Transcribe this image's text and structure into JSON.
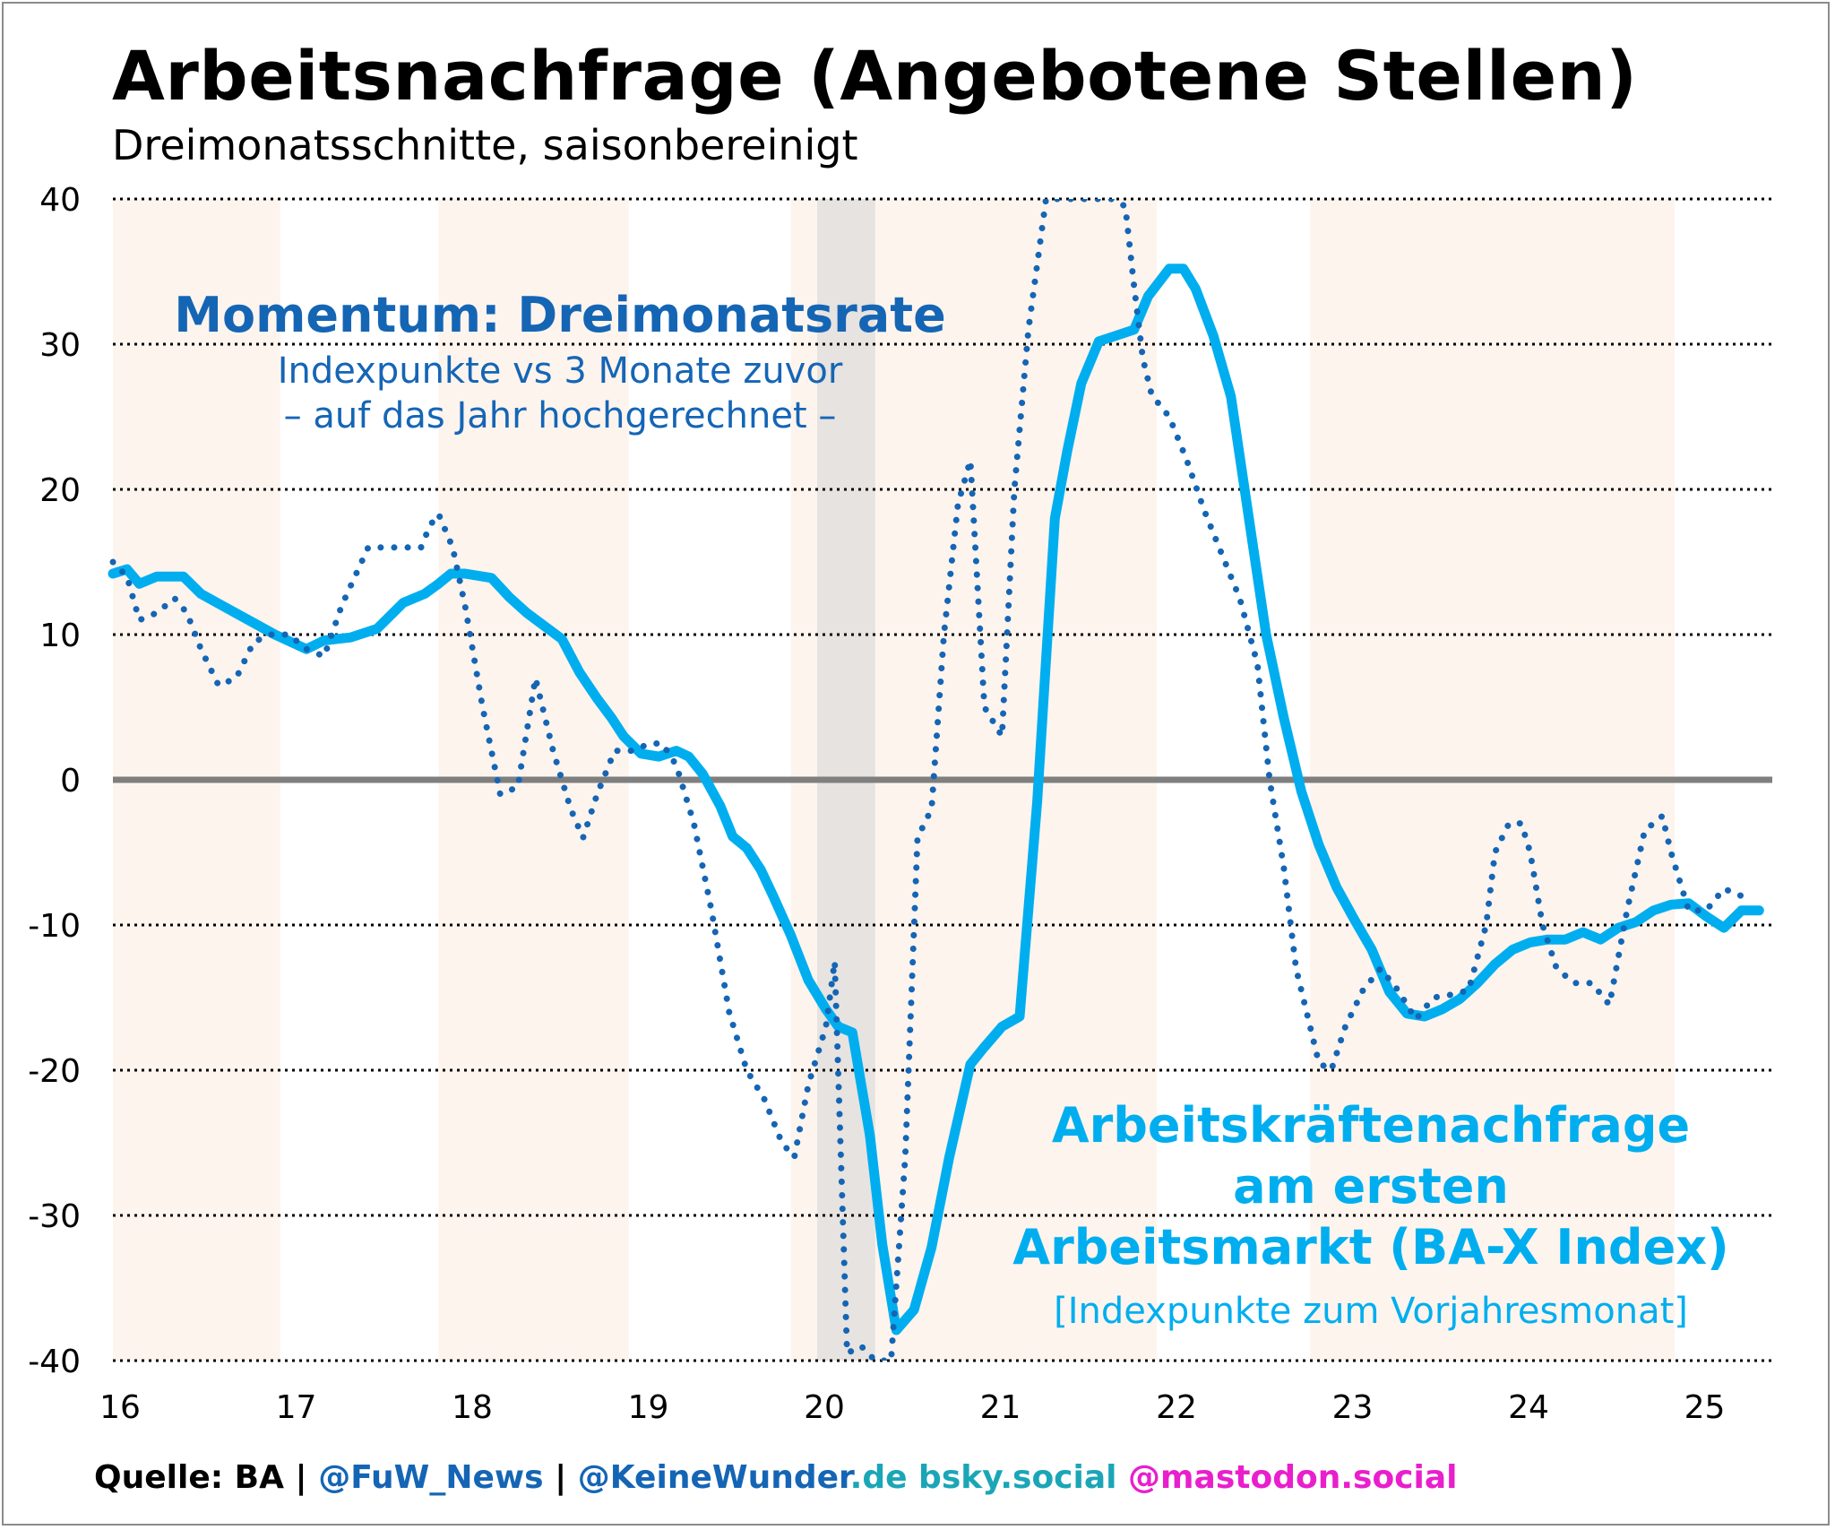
{
  "title": "Arbeitsnachfrage (Angebotene Stellen)",
  "subtitle": "Dreimonatsschnitte, saisonbereinigt",
  "annotations": {
    "momentum_title": "Momentum: Dreimonatsrate",
    "momentum_line1": "Indexpunkte vs 3 Monate zuvor",
    "momentum_line2": "– auf das Jahr hochgerechnet –",
    "bax_line1": "Arbeitskräftenachfrage",
    "bax_line2": "am ersten",
    "bax_line3": "Arbeitsmarkt (BA-X Index)",
    "bax_unit": "[Indexpunkte zum Vorjahresmonat]"
  },
  "footer": {
    "source": "Quelle: BA",
    "sep": " | ",
    "fuw": "@FuW_News",
    "kw_name": "@KeineWunder",
    "kw_domain": ".de",
    "bsky": " bsky.social",
    "mastodon": " @mastodon.social"
  },
  "colors": {
    "solid_line": "#00aeef",
    "dotted_line": "#1565b5",
    "momentum_text": "#1565b5",
    "bax_text": "#00aeef",
    "zero_line": "#7f7f7f",
    "highlight_band": "#fdf4ee",
    "covid_band": "#e6e3e0",
    "bsky": "#1aa6b7",
    "mastodon": "#e91ecd"
  },
  "chart_data": {
    "type": "line",
    "ylim": [
      -40,
      40
    ],
    "xlim": [
      2016,
      2025.4
    ],
    "yticks": [
      40,
      30,
      20,
      10,
      0,
      -10,
      -20,
      -30,
      -40
    ],
    "xticks": [
      {
        "x": 2016,
        "label": "16"
      },
      {
        "x": 2017,
        "label": "17"
      },
      {
        "x": 2018,
        "label": "18"
      },
      {
        "x": 2019,
        "label": "19"
      },
      {
        "x": 2020,
        "label": "20"
      },
      {
        "x": 2021,
        "label": "21"
      },
      {
        "x": 2022,
        "label": "22"
      },
      {
        "x": 2023,
        "label": "23"
      },
      {
        "x": 2024,
        "label": "24"
      },
      {
        "x": 2025,
        "label": "25"
      }
    ],
    "grid": "horizontal-dotted",
    "shaded_periods": [
      [
        2016,
        2016.95
      ],
      [
        2017.85,
        2018.93
      ],
      [
        2019.85,
        2020.93
      ],
      [
        2020.85,
        2021.93
      ],
      [
        2022.8,
        2023.87
      ],
      [
        2023.8,
        2024.87
      ]
    ],
    "recession_band": [
      2020,
      2020.33
    ],
    "series": [
      {
        "style": "solid",
        "x": [
          2016.0,
          2016.08,
          2016.15,
          2016.25,
          2016.4,
          2016.5,
          2016.65,
          2016.8,
          2016.92,
          2017.1,
          2017.2,
          2017.35,
          2017.5,
          2017.65,
          2017.77,
          2017.85,
          2017.92,
          2018.0,
          2018.15,
          2018.25,
          2018.35,
          2018.45,
          2018.55,
          2018.65,
          2018.75,
          2018.83,
          2018.9,
          2019.0,
          2019.1,
          2019.2,
          2019.27,
          2019.35,
          2019.45,
          2019.52,
          2019.6,
          2019.68,
          2019.75,
          2019.85,
          2019.95,
          2020.05,
          2020.12,
          2020.2,
          2020.3,
          2020.37,
          2020.45,
          2020.55,
          2020.65,
          2020.75,
          2020.87,
          2020.95,
          2021.05,
          2021.15,
          2021.25,
          2021.35,
          2021.42,
          2021.5,
          2021.6,
          2021.7,
          2021.8,
          2021.88,
          2022.0,
          2022.08,
          2022.15,
          2022.25,
          2022.35,
          2022.45,
          2022.55,
          2022.65,
          2022.75,
          2022.85,
          2022.95,
          2023.05,
          2023.15,
          2023.25,
          2023.35,
          2023.45,
          2023.55,
          2023.65,
          2023.75,
          2023.85,
          2023.95,
          2024.05,
          2024.15,
          2024.25,
          2024.35,
          2024.45,
          2024.55,
          2024.65,
          2024.75,
          2024.85,
          2024.95,
          2025.05,
          2025.15,
          2025.25
        ],
        "values": [
          14.2,
          14.5,
          13.5,
          14.0,
          14.0,
          12.8,
          11.8,
          10.8,
          10.0,
          9.0,
          9.6,
          9.8,
          10.4,
          12.2,
          12.8,
          13.5,
          14.2,
          14.2,
          13.9,
          12.6,
          11.5,
          10.6,
          9.7,
          7.4,
          5.6,
          4.3,
          3.0,
          1.8,
          1.6,
          2.0,
          1.6,
          0.4,
          -1.8,
          -3.9,
          -4.7,
          -6.2,
          -8.0,
          -10.7,
          -13.8,
          -15.8,
          -17.0,
          -17.4,
          -24.5,
          -32.0,
          -37.9,
          -36.5,
          -32.2,
          -26.0,
          -19.6,
          -18.4,
          -17.0,
          -16.3,
          -1.5,
          18.0,
          22.6,
          27.3,
          30.2,
          30.6,
          31.0,
          33.3,
          35.2,
          35.2,
          33.8,
          30.6,
          26.4,
          18.2,
          10.0,
          4.3,
          -0.8,
          -4.5,
          -7.4,
          -9.6,
          -11.7,
          -14.6,
          -16.1,
          -16.3,
          -15.8,
          -15.1,
          -14.0,
          -12.7,
          -11.7,
          -11.2,
          -11.0,
          -11.0,
          -10.5,
          -11.0,
          -10.2,
          -9.8,
          -9.0,
          -8.6,
          -8.5,
          -9.4,
          -10.2,
          -9.0
        ],
        "x2": [
          2025.35
        ],
        "values2": [
          -9.0
        ]
      },
      {
        "style": "dotted",
        "x": [
          2016.0,
          2016.08,
          2016.15,
          2016.25,
          2016.35,
          2016.42,
          2016.5,
          2016.6,
          2016.7,
          2016.8,
          2016.9,
          2017.0,
          2017.1,
          2017.2,
          2017.3,
          2017.45,
          2017.6,
          2017.75,
          2017.8,
          2017.85,
          2017.93,
          2018.0,
          2018.1,
          2018.2,
          2018.3,
          2018.4,
          2018.5,
          2018.6,
          2018.67,
          2018.75,
          2018.85,
          2018.95,
          2019.05,
          2019.12,
          2019.2,
          2019.3,
          2019.4,
          2019.5,
          2019.6,
          2019.7,
          2019.8,
          2019.87,
          2019.95,
          2020.05,
          2020.1,
          2020.17,
          2020.25,
          2020.33,
          2020.42,
          2020.5,
          2020.57,
          2020.65,
          2020.72,
          2020.8,
          2020.87,
          2020.95,
          2021.05,
          2021.12,
          2021.2,
          2021.3,
          2021.35,
          2021.42,
          2021.5,
          2021.6,
          2021.67,
          2021.75,
          2021.8,
          2021.85,
          2021.9,
          2022.0,
          2022.1,
          2022.2,
          2022.3,
          2022.4,
          2022.5,
          2022.57,
          2022.65,
          2022.72,
          2022.8,
          2022.85,
          2022.92,
          2023.0,
          2023.1,
          2023.2,
          2023.3,
          2023.4,
          2023.5,
          2023.6,
          2023.7,
          2023.8,
          2023.85,
          2023.93,
          2024.0,
          2024.05,
          2024.12,
          2024.2,
          2024.3,
          2024.4,
          2024.5,
          2024.6,
          2024.7,
          2024.8,
          2024.85,
          2024.95,
          2025.05,
          2025.15,
          2025.25
        ],
        "values": [
          15.0,
          14.0,
          11.0,
          11.5,
          12.5,
          11.5,
          9.0,
          6.5,
          7.0,
          9.5,
          10.0,
          10.0,
          9.0,
          8.5,
          12.0,
          16.0,
          16.0,
          16.0,
          17.5,
          18.3,
          16.0,
          12.0,
          5.0,
          -1.0,
          -0.5,
          7.0,
          2.0,
          -2.0,
          -4.0,
          -1.0,
          2.0,
          2.0,
          2.5,
          2.5,
          1.0,
          -3.0,
          -9.0,
          -16.0,
          -20.0,
          -22.0,
          -25.0,
          -26.0,
          -21.0,
          -17.0,
          -12.5,
          -39.5,
          -39.0,
          -40.0,
          -40.0,
          -26.0,
          -4.0,
          -2.0,
          10.0,
          19.0,
          22.0,
          5.0,
          3.0,
          20.0,
          31.0,
          40.0,
          40.0,
          40.0,
          40.0,
          40.0,
          40.0,
          39.5,
          34.0,
          29.0,
          26.5,
          25.0,
          22.0,
          18.5,
          15.5,
          12.5,
          8.0,
          0.0,
          -6.0,
          -13.0,
          -17.0,
          -19.5,
          -20.0,
          -17.0,
          -14.5,
          -13.0,
          -14.5,
          -16.5,
          -15.0,
          -14.8,
          -14.5,
          -10.0,
          -5.0,
          -3.0,
          -3.0,
          -5.0,
          -10.0,
          -13.0,
          -14.0,
          -14.0,
          -15.5,
          -9.0,
          -3.5,
          -2.5,
          -5.0,
          -9.0,
          -9.0,
          -7.5,
          -8.0
        ]
      }
    ]
  }
}
